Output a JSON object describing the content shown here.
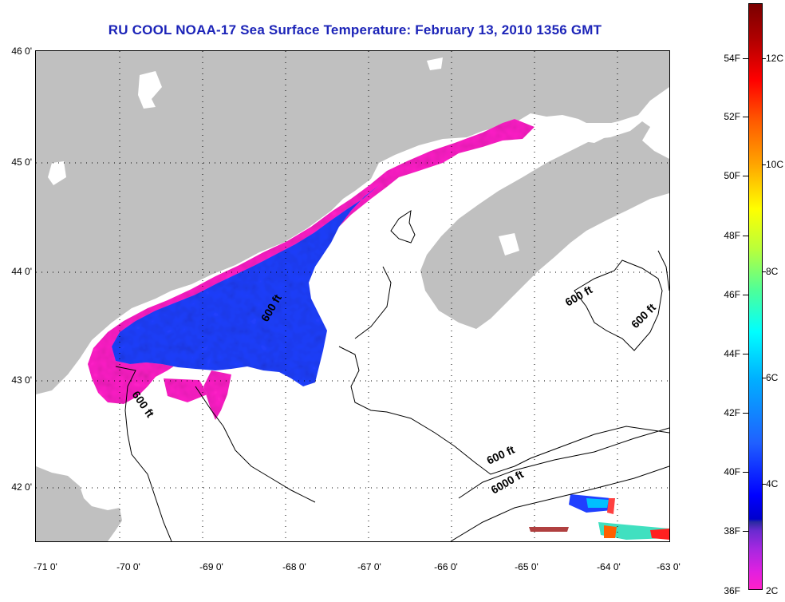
{
  "title": "RU COOL  NOAA-17  Sea Surface Temperature:  February 13, 2010 1356 GMT",
  "latitude_labels": [
    "46 0'",
    "45 0'",
    "44 0'",
    "43 0'",
    "42 0'"
  ],
  "longitude_labels": [
    "-71 0'",
    "-70 0'",
    "-69 0'",
    "-68 0'",
    "-67 0'",
    "-66 0'",
    "-65 0'",
    "-64 0'",
    "-63 0'"
  ],
  "contour_labels": {
    "c1": "600 ft",
    "c2": "600 ft",
    "c3": "600 ft",
    "c4": "600 ft",
    "c5": "600 ft",
    "c6": "6000 ft"
  },
  "colorbar": {
    "fahrenheit": [
      "54F",
      "52F",
      "50F",
      "48F",
      "46F",
      "44F",
      "42F",
      "40F",
      "38F",
      "36F"
    ],
    "celsius": [
      "12C",
      "10C",
      "8C",
      "6C",
      "4C",
      "2C"
    ]
  },
  "colors": {
    "land": "#c0c0c0",
    "water": "#ffffff",
    "title": "#1c24b8",
    "sst_cold_magenta": "#ff20c8",
    "sst_blue": "#2040ff"
  }
}
